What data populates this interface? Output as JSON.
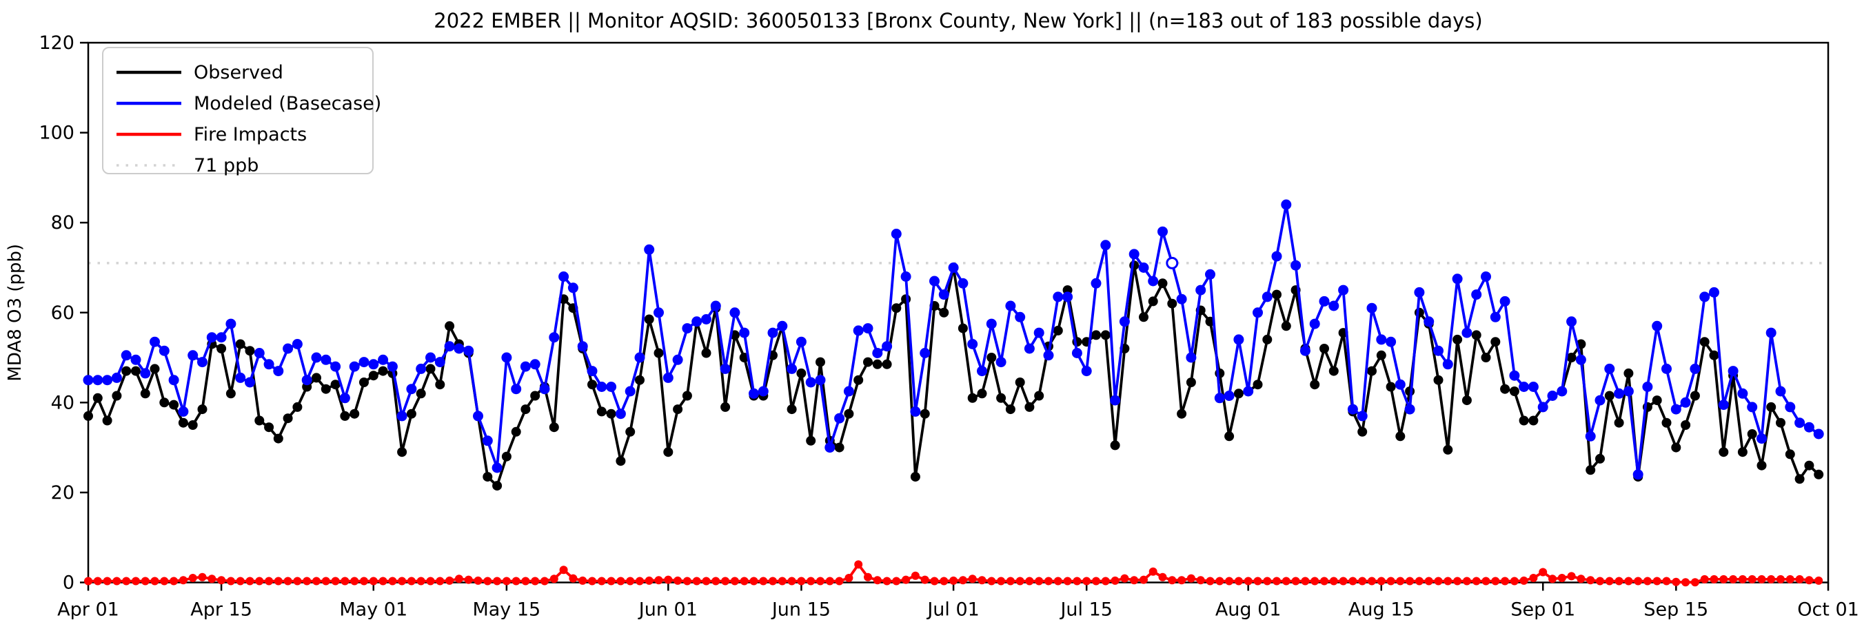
{
  "title": "2022 EMBER || Monitor AQSID: 360050133 [Bronx County, New York] || (n=183 out of 183 possible days)",
  "colors": {
    "observed": "#000000",
    "modeled": "#0000ff",
    "fire": "#ff0000",
    "threshold": "#d3d3d3",
    "axis": "#000000",
    "legend_border": "#cccccc"
  },
  "legend": {
    "items": [
      {
        "label": "Observed",
        "color": "#000000",
        "style": "solid"
      },
      {
        "label": "Modeled (Basecase)",
        "color": "#0000ff",
        "style": "solid"
      },
      {
        "label": "Fire Impacts",
        "color": "#ff0000",
        "style": "solid"
      },
      {
        "label": "71 ppb",
        "color": "#d3d3d3",
        "style": "dotted"
      }
    ]
  },
  "chart_data": {
    "type": "line",
    "title": "2022 EMBER || Monitor AQSID: 360050133 [Bronx County, New York] || (n=183 out of 183 possible days)",
    "xlabel": "",
    "ylabel": "MDA8 O3 (ppb)",
    "ylim": [
      0,
      120
    ],
    "y_ticks": [
      0,
      20,
      40,
      60,
      80,
      100,
      120
    ],
    "x_ticks": [
      {
        "label": "Apr 01",
        "day": 0
      },
      {
        "label": "Apr 15",
        "day": 14
      },
      {
        "label": "May 01",
        "day": 30
      },
      {
        "label": "May 15",
        "day": 44
      },
      {
        "label": "Jun 01",
        "day": 61
      },
      {
        "label": "Jun 15",
        "day": 75
      },
      {
        "label": "Jul 01",
        "day": 91
      },
      {
        "label": "Jul 15",
        "day": 105
      },
      {
        "label": "Aug 01",
        "day": 122
      },
      {
        "label": "Aug 15",
        "day": 136
      },
      {
        "label": "Sep 01",
        "day": 153
      },
      {
        "label": "Sep 15",
        "day": 167
      },
      {
        "label": "Oct 01",
        "day": 183
      }
    ],
    "start_date": "Apr 01",
    "end_date": "Sep 30",
    "n_days": 183,
    "threshold": {
      "value": 71,
      "label": "71 ppb"
    },
    "grid": false,
    "legend_position": "upper left",
    "modeled_open_marker_index": 114,
    "series": [
      {
        "name": "Observed",
        "color": "#000000",
        "values": [
          37,
          41,
          36,
          41.5,
          47,
          47,
          42,
          47.5,
          40,
          39.5,
          35.5,
          35,
          38.5,
          53,
          52,
          42,
          53,
          51.5,
          36,
          34.5,
          32,
          36.5,
          39,
          43.5,
          45.5,
          43,
          44,
          37,
          37.5,
          44.5,
          46,
          47,
          46.5,
          29,
          37.5,
          42,
          47.5,
          44,
          57,
          53,
          51,
          37,
          23.5,
          21.5,
          28,
          33.5,
          38.5,
          41.5,
          43.5,
          34.5,
          63,
          61,
          52,
          44,
          38,
          37.5,
          27,
          33.5,
          45,
          58.5,
          51,
          29,
          38.5,
          41.5,
          58,
          51,
          61,
          39,
          55,
          50,
          41.5,
          41.5,
          50.5,
          57,
          38.5,
          46.5,
          31.5,
          49,
          31.5,
          30,
          37.5,
          45,
          49,
          48.5,
          48.5,
          61,
          63,
          23.5,
          37.5,
          61.5,
          60,
          70,
          56.5,
          41,
          42,
          50,
          41,
          38.5,
          44.5,
          39,
          41.5,
          52.5,
          56,
          65,
          53.5,
          53.5,
          55,
          55,
          30.5,
          52,
          70.5,
          59,
          62.5,
          66.5,
          62,
          37.5,
          44.5,
          60.5,
          58,
          46.5,
          32.5,
          42,
          42.5,
          44,
          54,
          64,
          57,
          65,
          52,
          44,
          52,
          47,
          55.5,
          38,
          33.5,
          47,
          50.5,
          43.5,
          32.5,
          42.5,
          60,
          57.5,
          45,
          29.5,
          54,
          40.5,
          55,
          50,
          53.5,
          43,
          42.5,
          36,
          36,
          39,
          41.5,
          42.5,
          50,
          53,
          25,
          27.5,
          41.5,
          35.5,
          46.5,
          23.5,
          39,
          40.5,
          35.5,
          30,
          35,
          41.5,
          53.5,
          50.5,
          29,
          46,
          29,
          33,
          26,
          39,
          35.5,
          28.5,
          23,
          26,
          24
        ]
      },
      {
        "name": "Modeled (Basecase)",
        "color": "#0000ff",
        "values": [
          45,
          45,
          45,
          45.5,
          50.5,
          49.5,
          46.5,
          53.5,
          51.5,
          45,
          38,
          50.5,
          49,
          54.5,
          54.5,
          57.5,
          45.5,
          44.5,
          51,
          48.5,
          47,
          52,
          53,
          45,
          50,
          49.5,
          48,
          41,
          48,
          49,
          48.5,
          49.5,
          48,
          37,
          43,
          47.5,
          50,
          49,
          52.5,
          52,
          51.5,
          37,
          31.5,
          25.5,
          50,
          43,
          48,
          48.5,
          43,
          54.5,
          68,
          65.5,
          52.5,
          47,
          43.5,
          43.5,
          37.5,
          42.5,
          50,
          74,
          60,
          45.5,
          49.5,
          56.5,
          58,
          58.5,
          61.5,
          47.5,
          60,
          55.5,
          42,
          42.5,
          55.5,
          57,
          47.5,
          53.5,
          44.5,
          45,
          30,
          36.5,
          42.5,
          56,
          56.5,
          51,
          52.5,
          77.5,
          68,
          38,
          51,
          67,
          64,
          70,
          66.5,
          53,
          47,
          57.5,
          49,
          61.5,
          59,
          52,
          55.5,
          50.5,
          63.5,
          63.5,
          51,
          47,
          66.5,
          75,
          40.5,
          58,
          73,
          70,
          67,
          78,
          71,
          63,
          50,
          65,
          68.5,
          41,
          41.5,
          54,
          42.5,
          60,
          63.5,
          72.5,
          84,
          70.5,
          51.5,
          57.5,
          62.5,
          61.5,
          65,
          38.5,
          37,
          61,
          54,
          53.5,
          44,
          38.5,
          64.5,
          58,
          51.5,
          48.5,
          67.5,
          55.5,
          64,
          68,
          59,
          62.5,
          46,
          43.5,
          43.5,
          39,
          41.5,
          42.5,
          58,
          49.5,
          32.5,
          40.5,
          47.5,
          42,
          42.5,
          24,
          43.5,
          57,
          47.5,
          38.5,
          40,
          47.5,
          63.5,
          64.5,
          39.5,
          47,
          42,
          39,
          32,
          55.5,
          42.5,
          39,
          35.5,
          34.5,
          33
        ]
      },
      {
        "name": "Fire Impacts",
        "color": "#ff0000",
        "values": [
          0.3,
          0.3,
          0.3,
          0.3,
          0.3,
          0.3,
          0.3,
          0.3,
          0.3,
          0.3,
          0.5,
          1.0,
          1.2,
          0.8,
          0.5,
          0.3,
          0.3,
          0.3,
          0.3,
          0.3,
          0.3,
          0.3,
          0.3,
          0.3,
          0.3,
          0.3,
          0.3,
          0.3,
          0.3,
          0.3,
          0.3,
          0.3,
          0.3,
          0.3,
          0.3,
          0.3,
          0.3,
          0.3,
          0.4,
          0.8,
          0.6,
          0.4,
          0.3,
          0.3,
          0.3,
          0.3,
          0.3,
          0.3,
          0.3,
          0.8,
          2.8,
          0.9,
          0.4,
          0.3,
          0.3,
          0.3,
          0.3,
          0.3,
          0.3,
          0.4,
          0.5,
          0.6,
          0.4,
          0.3,
          0.3,
          0.3,
          0.3,
          0.3,
          0.3,
          0.3,
          0.3,
          0.3,
          0.3,
          0.3,
          0.3,
          0.3,
          0.3,
          0.3,
          0.3,
          0.3,
          1.0,
          4.0,
          1.2,
          0.5,
          0.3,
          0.3,
          0.6,
          1.5,
          0.6,
          0.3,
          0.3,
          0.4,
          0.5,
          0.8,
          0.5,
          0.3,
          0.3,
          0.3,
          0.3,
          0.3,
          0.3,
          0.3,
          0.3,
          0.3,
          0.3,
          0.3,
          0.3,
          0.3,
          0.4,
          0.9,
          0.5,
          0.6,
          2.4,
          1.2,
          0.5,
          0.5,
          0.9,
          0.5,
          0.3,
          0.3,
          0.3,
          0.3,
          0.3,
          0.3,
          0.3,
          0.3,
          0.3,
          0.3,
          0.3,
          0.3,
          0.3,
          0.3,
          0.3,
          0.3,
          0.3,
          0.3,
          0.3,
          0.3,
          0.3,
          0.3,
          0.3,
          0.3,
          0.3,
          0.3,
          0.3,
          0.3,
          0.3,
          0.3,
          0.3,
          0.3,
          0.3,
          0.4,
          1.0,
          2.3,
          0.8,
          1.0,
          1.4,
          0.8,
          0.5,
          0.3,
          0.3,
          0.3,
          0.3,
          0.3,
          0.3,
          0.3,
          0.3,
          0.1,
          0.05,
          0.05,
          0.7,
          0.7,
          0.7,
          0.7,
          0.7,
          0.7,
          0.7,
          0.7,
          0.7,
          0.7,
          0.7,
          0.5,
          0.4
        ]
      }
    ]
  }
}
